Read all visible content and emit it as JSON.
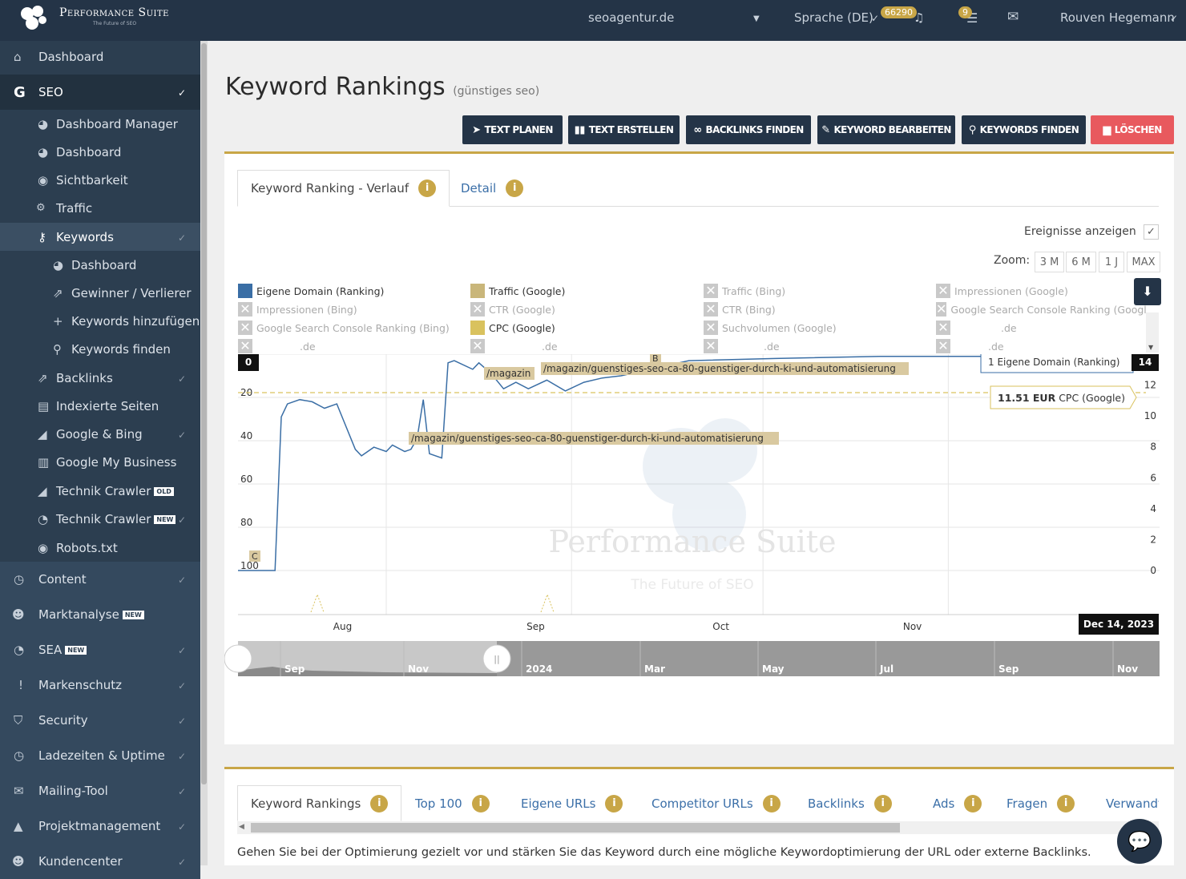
{
  "topbar": {
    "brand": "Performance Suite",
    "tagline": "The Future of SEO",
    "domain": "seoagentur.de",
    "language": "Sprache (DE)",
    "notif_count": "66290",
    "task_count": "9",
    "user": "Rouven Hegemann"
  },
  "sidebar": {
    "dashboard": "Dashboard",
    "seo": "SEO",
    "dashboard_manager": "Dashboard Manager",
    "seo_dashboard": "Dashboard",
    "sichtbarkeit": "Sichtbarkeit",
    "traffic": "Traffic",
    "keywords": "Keywords",
    "kw_dashboard": "Dashboard",
    "gewinner": "Gewinner / Verlierer",
    "kw_add": "Keywords hinzufügen",
    "kw_find": "Keywords finden",
    "backlinks": "Backlinks",
    "indexed": "Indexierte Seiten",
    "google_bing": "Google & Bing",
    "gmb": "Google My Business",
    "crawler_old": "Technik Crawler",
    "old_badge": "OLD",
    "crawler_new": "Technik Crawler",
    "new_badge": "NEW",
    "robots": "Robots.txt",
    "content": "Content",
    "markt": "Marktanalyse",
    "sea": "SEA",
    "marken": "Markenschutz",
    "security": "Security",
    "ladezeiten": "Ladezeiten & Uptime",
    "mailing": "Mailing-Tool",
    "projekt": "Projektmanagement",
    "kunden": "Kundencenter"
  },
  "page": {
    "title": "Keyword Rankings",
    "subtitle": "(günstiges seo)",
    "buttons": {
      "text_plan": "TEXT PLANEN",
      "text_create": "TEXT ERSTELLEN",
      "backlinks": "BACKLINKS FINDEN",
      "kw_edit": "KEYWORD BEARBEITEN",
      "kw_find": "KEYWORDS FINDEN",
      "delete": "LÖSCHEN"
    }
  },
  "chart_card": {
    "tab_verlauf": "Keyword Ranking - Verlauf",
    "tab_detail": "Detail",
    "events_label": "Ereignisse anzeigen",
    "zoom_label": "Zoom:",
    "zoom": [
      "3 M",
      "6 M",
      "1 J",
      "MAX"
    ],
    "legend": {
      "own": "Eigene Domain (Ranking)",
      "traffic_google": "Traffic (Google)",
      "traffic_bing": "Traffic (Bing)",
      "impr_google": "Impressionen (Google)",
      "impr_bing": "Impressionen (Bing)",
      "ctr_google": "CTR (Google)",
      "ctr_bing": "CTR (Bing)",
      "gsc_google": "Google Search Console Ranking (Googl",
      "gsc_bing": "Google Search Console Ranking (Bing)",
      "cpc_google": "CPC (Google)",
      "sv_google": "Suchvolumen (Google)",
      "d1": ".de",
      "d2": ".de",
      "d3": ".de",
      "d4": ".de",
      "d5": ".de"
    }
  },
  "chart_data": {
    "type": "line",
    "series": [
      {
        "name": "Eigene Domain (Ranking)",
        "color": "#3a6ea5",
        "x": [
          "Jul 20",
          "Jul 26",
          "Jul 27",
          "Jul 28",
          "Jul 30",
          "Aug 1",
          "Aug 3",
          "Aug 5",
          "Aug 6",
          "Aug 8",
          "Aug 9",
          "Aug 11",
          "Aug 13",
          "Aug 14",
          "Aug 16",
          "Aug 17",
          "Aug 18",
          "Aug 19",
          "Aug 20",
          "Aug 22",
          "Aug 23",
          "Aug 24",
          "Aug 27",
          "Aug 28",
          "Aug 30",
          "Sep 1",
          "Sep 3",
          "Sep 5",
          "Sep 8",
          "Sep 11",
          "Sep 14",
          "Sep 17",
          "Sep 20",
          "Oct 1",
          "Oct 15",
          "Nov 1",
          "Nov 15",
          "Dec 1",
          "Dec 14"
        ],
        "y": [
          100,
          100,
          29,
          23,
          21,
          22,
          25,
          23,
          30,
          44,
          47,
          43,
          45,
          42,
          45,
          44,
          39,
          21,
          46,
          48,
          4,
          3,
          7,
          4,
          9,
          16,
          13,
          16,
          12,
          17,
          13,
          11,
          10,
          3,
          2,
          1,
          1,
          1,
          1
        ]
      }
    ],
    "cpc_line": 11.51,
    "tooltip_own": "1 Eigene Domain (Ranking)",
    "tooltip_own_label": "14",
    "tooltip_cpc_value": "11.51 EUR",
    "tooltip_cpc_name": "CPC (Google)",
    "annotations": [
      "/magazin/guenstiges-seo-ca-80-guenstiger-durch-ki-und-automatisierung",
      "/magazin",
      "/magazin/guenstiges-seo-ca-80-guenstiger-durch-ki-und-automatisierung",
      "B",
      "C"
    ],
    "y_left_ticks": [
      "0",
      "20",
      "40",
      "60",
      "80",
      "100"
    ],
    "y_right_ticks": [
      "12",
      "10",
      "8",
      "6",
      "4",
      "2",
      "0"
    ],
    "x_ticks": [
      "Aug",
      "Sep",
      "Oct",
      "Nov"
    ],
    "x_current": "Dec 14, 2023",
    "navigator_ticks": [
      "Sep",
      "Nov",
      "2024",
      "Mar",
      "May",
      "Jul",
      "Sep",
      "Nov"
    ],
    "watermark_title": "Performance Suite",
    "watermark_sub": "The Future of SEO"
  },
  "bottom_card": {
    "tabs": [
      "Keyword Rankings",
      "Top 100",
      "Eigene URLs",
      "Competitor URLs",
      "Backlinks",
      "Ads",
      "Fragen",
      "Verwandt"
    ],
    "text": "Gehen Sie bei der Optimierung gezielt vor und stärken Sie das Keyword durch eine mögliche Keywordoptimierung der URL oder externe Backlinks."
  }
}
